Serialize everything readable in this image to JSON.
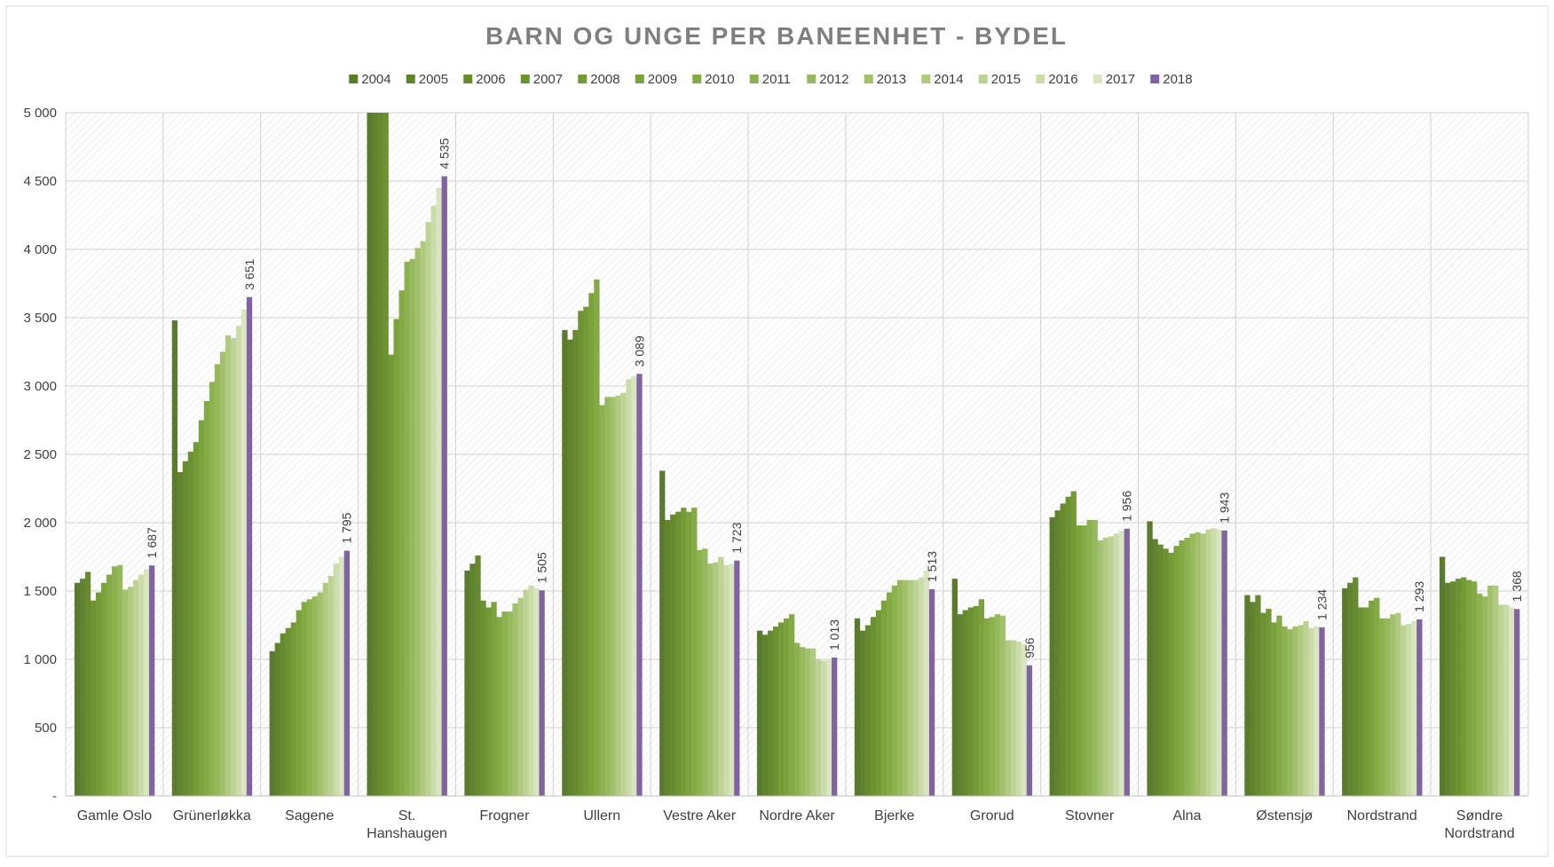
{
  "chart_data": {
    "type": "bar",
    "title": "BARN OG UNGE PER BANEENHET - BYDEL",
    "xlabel": "",
    "ylabel": "",
    "ylim": [
      0,
      5000
    ],
    "yticks": [
      0,
      500,
      1000,
      1500,
      2000,
      2500,
      3000,
      3500,
      4000,
      4500,
      5000
    ],
    "ytick_labels": [
      "-",
      "500",
      "1 000",
      "1 500",
      "2 000",
      "2 500",
      "3 000",
      "3 500",
      "4 000",
      "4 500",
      "5 000"
    ],
    "grid": true,
    "legend_position": "top",
    "categories": [
      "Gamle Oslo",
      "Grünerløkka",
      "Sagene",
      "St. Hanshaugen",
      "Frogner",
      "Ullern",
      "Vestre Aker",
      "Nordre Aker",
      "Bjerke",
      "Grorud",
      "Stovner",
      "Alna",
      "Østensjø",
      "Nordstrand",
      "Søndre Nordstrand"
    ],
    "series": [
      {
        "name": "2004",
        "color": "#5b7a2e",
        "values": [
          1560,
          3480,
          1060,
          5000,
          1650,
          3410,
          2380,
          1210,
          1300,
          1590,
          2040,
          2010,
          1470,
          1520,
          1750
        ]
      },
      {
        "name": "2005",
        "color": "#61822f",
        "values": [
          1590,
          2370,
          1120,
          5000,
          1700,
          3340,
          2020,
          1180,
          1210,
          1330,
          2090,
          1880,
          1420,
          1560,
          1560
        ]
      },
      {
        "name": "2006",
        "color": "#678a31",
        "values": [
          1640,
          2450,
          1190,
          5000,
          1760,
          3410,
          2060,
          1210,
          1250,
          1360,
          2140,
          1840,
          1470,
          1600,
          1570
        ]
      },
      {
        "name": "2007",
        "color": "#6d9234",
        "values": [
          1430,
          2520,
          1230,
          5000,
          1430,
          3550,
          2080,
          1240,
          1310,
          1380,
          2190,
          1810,
          1340,
          1380,
          1590
        ]
      },
      {
        "name": "2008",
        "color": "#749a38",
        "values": [
          1490,
          2590,
          1270,
          3230,
          1380,
          3580,
          2110,
          1270,
          1360,
          1390,
          2230,
          1780,
          1370,
          1380,
          1600
        ]
      },
      {
        "name": "2009",
        "color": "#7ba23d",
        "values": [
          1560,
          2750,
          1360,
          3490,
          1420,
          3680,
          2080,
          1300,
          1430,
          1440,
          1980,
          1830,
          1270,
          1430,
          1580
        ]
      },
      {
        "name": "2010",
        "color": "#83aa45",
        "values": [
          1620,
          2890,
          1420,
          3700,
          1310,
          3780,
          2110,
          1330,
          1490,
          1300,
          1980,
          1870,
          1320,
          1450,
          1570
        ]
      },
      {
        "name": "2011",
        "color": "#8cb14f",
        "values": [
          1680,
          3030,
          1440,
          3910,
          1350,
          2860,
          1800,
          1120,
          1540,
          1310,
          2020,
          1890,
          1240,
          1300,
          1480
        ]
      },
      {
        "name": "2012",
        "color": "#97b95d",
        "values": [
          1690,
          3160,
          1460,
          3930,
          1350,
          2920,
          1810,
          1090,
          1580,
          1330,
          2020,
          1920,
          1220,
          1300,
          1460
        ]
      },
      {
        "name": "2013",
        "color": "#a3c16d",
        "values": [
          1510,
          3250,
          1490,
          4010,
          1410,
          2920,
          1700,
          1080,
          1580,
          1320,
          1870,
          1930,
          1240,
          1330,
          1540
        ]
      },
      {
        "name": "2014",
        "color": "#b0ca80",
        "values": [
          1530,
          3370,
          1560,
          4060,
          1450,
          2930,
          1710,
          1080,
          1580,
          1140,
          1890,
          1920,
          1250,
          1340,
          1540
        ]
      },
      {
        "name": "2015",
        "color": "#bdd394",
        "values": [
          1580,
          3350,
          1610,
          4200,
          1510,
          2950,
          1750,
          1000,
          1580,
          1140,
          1900,
          1950,
          1280,
          1250,
          1400
        ]
      },
      {
        "name": "2016",
        "color": "#cbdcaa",
        "values": [
          1620,
          3440,
          1700,
          4320,
          1540,
          3050,
          1690,
          990,
          1600,
          1130,
          1920,
          1960,
          1230,
          1260,
          1400
        ]
      },
      {
        "name": "2017",
        "color": "#d8e5bf",
        "values": [
          1660,
          3560,
          1750,
          4450,
          1520,
          3070,
          1700,
          1000,
          1650,
          1110,
          1940,
          1950,
          1240,
          1280,
          1380
        ]
      },
      {
        "name": "2018",
        "color": "#8064a2",
        "values": [
          1687,
          3651,
          1795,
          4535,
          1505,
          3089,
          1723,
          1013,
          1513,
          956,
          1956,
          1943,
          1234,
          1293,
          1368
        ]
      }
    ],
    "data_labels_2018": [
      "1 687",
      "3 651",
      "1 795",
      "4 535",
      "1 505",
      "3 089",
      "1 723",
      "1 013",
      "1 513",
      "956",
      "1 956",
      "1 943",
      "1 234",
      "1 293",
      "1 368"
    ]
  }
}
